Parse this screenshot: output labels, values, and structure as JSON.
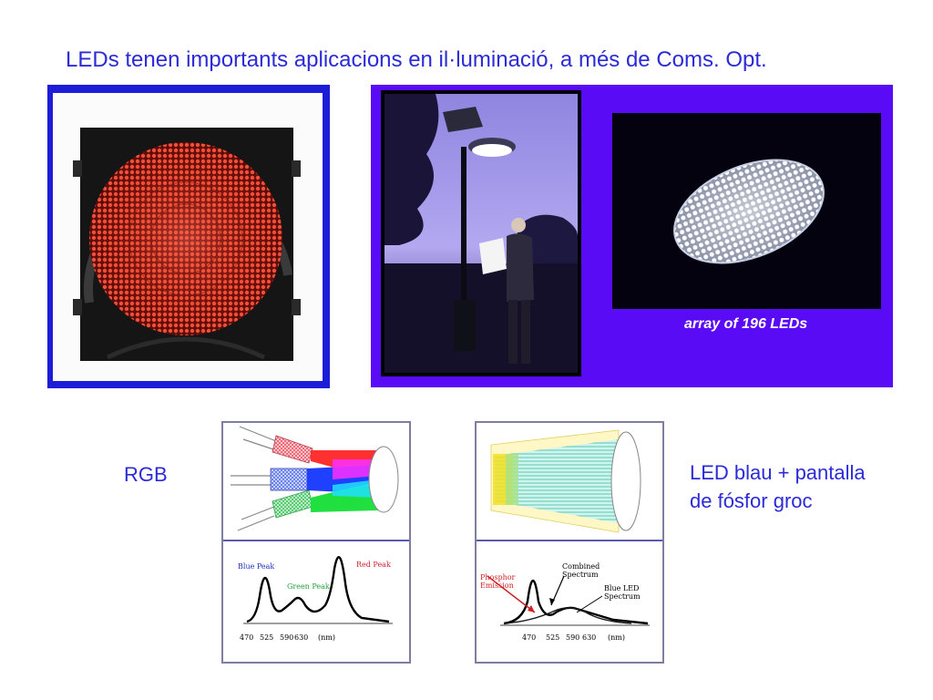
{
  "title": "LEDs tenen importants aplicacions en il·luminació, a més de Coms. Opt.",
  "photo_caption": "array of 196 LEDs",
  "rgb_section": {
    "label": "RGB",
    "spectrum_labels": {
      "blue_peak": "Blue Peak",
      "green_peak": "Green Peak",
      "red_peak": "Red Peak",
      "axis_ticks": [
        "470",
        "525",
        "590",
        "630"
      ],
      "axis_unit": "(nm)"
    }
  },
  "phosphor_section": {
    "label_line1": "LED blau + pantalla",
    "label_line2": "de fósfor groc",
    "spectrum_labels": {
      "phosphor_emission_1": "Phosphor",
      "phosphor_emission_2": "Emission",
      "combined_1": "Combined",
      "combined_2": "Spectrum",
      "blue_led_1": "Blue LED",
      "blue_led_2": "Spectrum",
      "axis_ticks": [
        "470",
        "525",
        "590",
        "630"
      ],
      "axis_unit": "(nm)"
    }
  },
  "colors": {
    "text_blue": "#2b2bd8",
    "panel_blue": "#1d1dd8",
    "panel_purple": "#5a0bf5",
    "traffic_red": "#e23a2a"
  }
}
